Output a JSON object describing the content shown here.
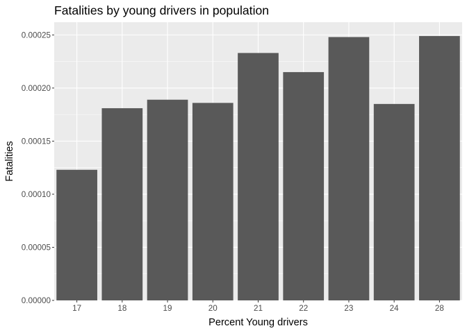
{
  "chart_data": {
    "type": "bar",
    "title": "Fatalities by young drivers in population",
    "xlabel": "Percent Young drivers",
    "ylabel": "Fatalities",
    "categories": [
      "17",
      "18",
      "19",
      "20",
      "21",
      "22",
      "23",
      "24",
      "28"
    ],
    "values": [
      0.000123,
      0.000181,
      0.000189,
      0.000186,
      0.000233,
      0.000215,
      0.000248,
      0.000185,
      0.000249
    ],
    "ylim": [
      0,
      0.000262
    ],
    "yticks": [
      0,
      5e-05,
      0.0001,
      0.00015,
      0.0002,
      0.00025
    ],
    "ytick_labels": [
      "0.00000",
      "0.00005",
      "0.00010",
      "0.00015",
      "0.00020",
      "0.00025"
    ],
    "grid": true,
    "legend": "none",
    "colors": {
      "bar": "#595959",
      "panel": "#ebebeb",
      "grid_major": "#ffffff",
      "tick_text": "#4d4d4d",
      "tick_mark": "#333333"
    }
  }
}
